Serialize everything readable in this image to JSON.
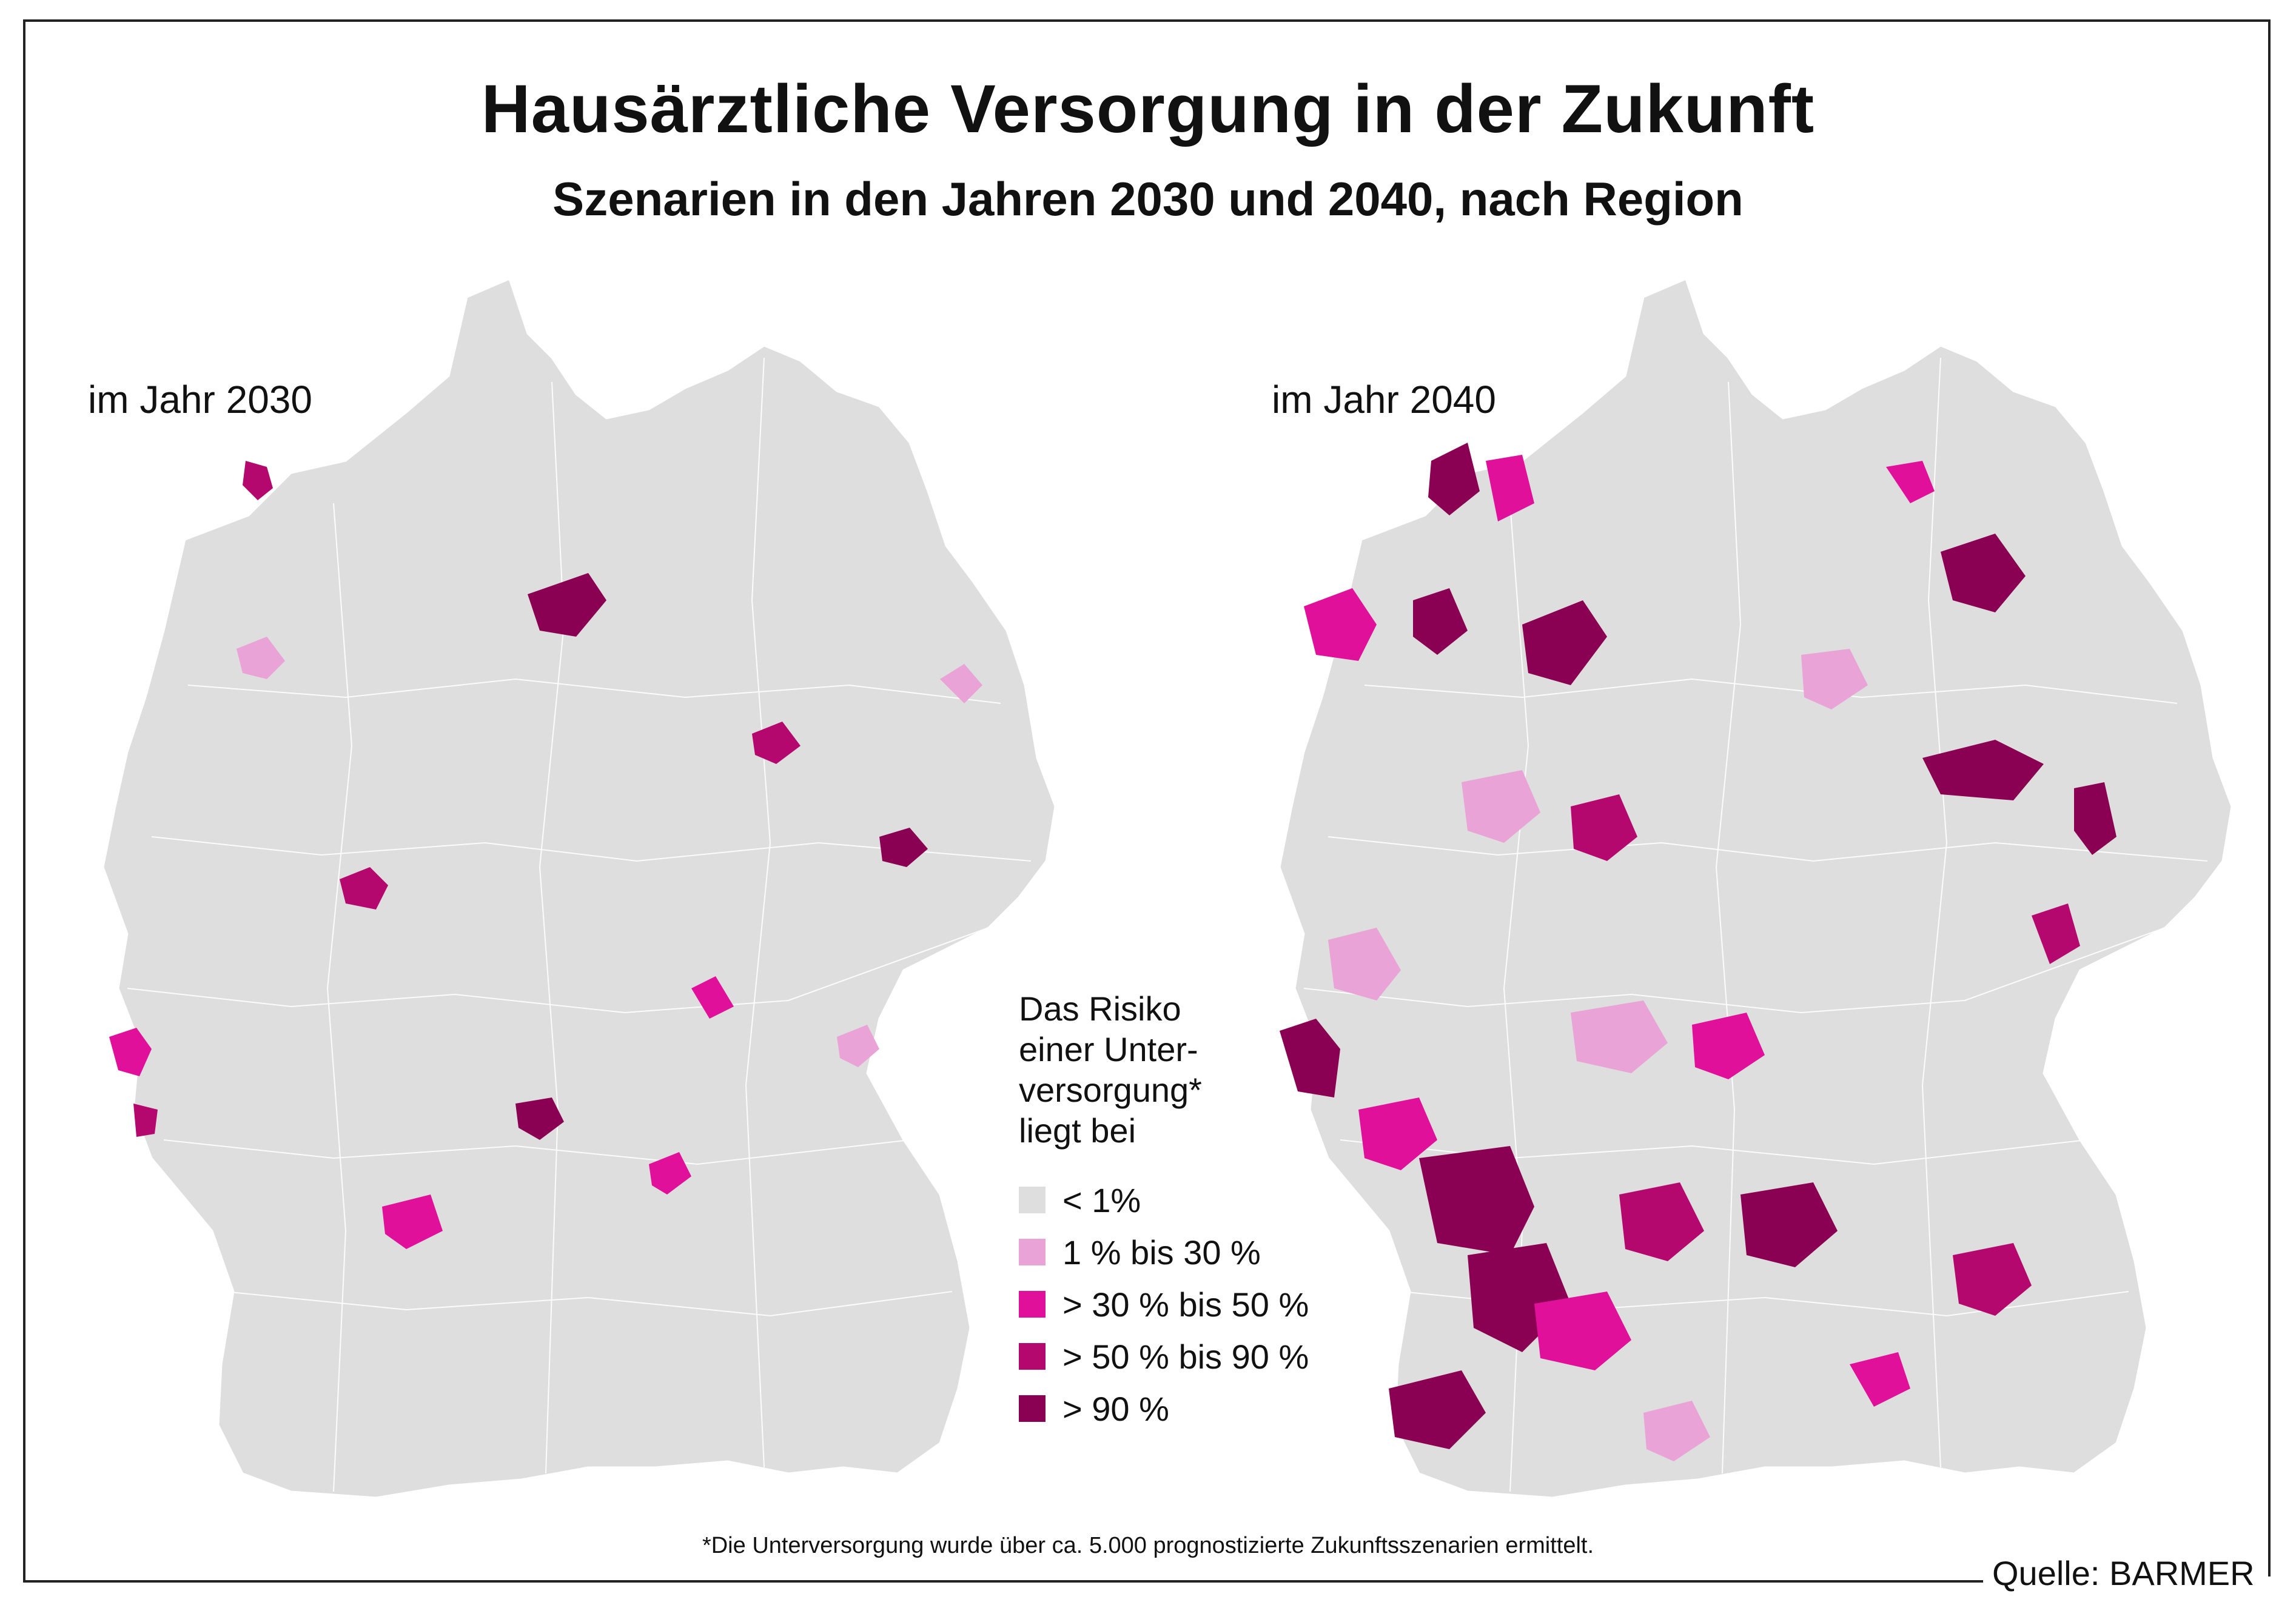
{
  "title": "Hausärztliche Versorgung in der Zukunft",
  "subtitle": "Szenarien in den Jahren 2030 und 2040, nach Region",
  "maps": [
    {
      "label": "im Jahr 2030"
    },
    {
      "label": "im Jahr 2040"
    }
  ],
  "legend": {
    "title": "Das Risiko\neiner Unter-\nversorgung*\nliegt bei",
    "items": [
      {
        "label": "< 1%",
        "color": "#dedede"
      },
      {
        "label": "1 % bis 30 %",
        "color": "#e9a3d6"
      },
      {
        "label": "> 30 % bis 50 %",
        "color": "#e0109a"
      },
      {
        "label": "> 50 % bis 90 %",
        "color": "#b5086e"
      },
      {
        "label": "> 90 %",
        "color": "#8a0052"
      }
    ]
  },
  "footnote": "*Die Unterversorgung wurde über ca. 5.000 prognostizierte Zukunftsszenarien ermittelt.",
  "source": "Quelle: BARMER",
  "colors": {
    "base": "#dedede",
    "border": "#ffffff",
    "frame": "#222222"
  }
}
